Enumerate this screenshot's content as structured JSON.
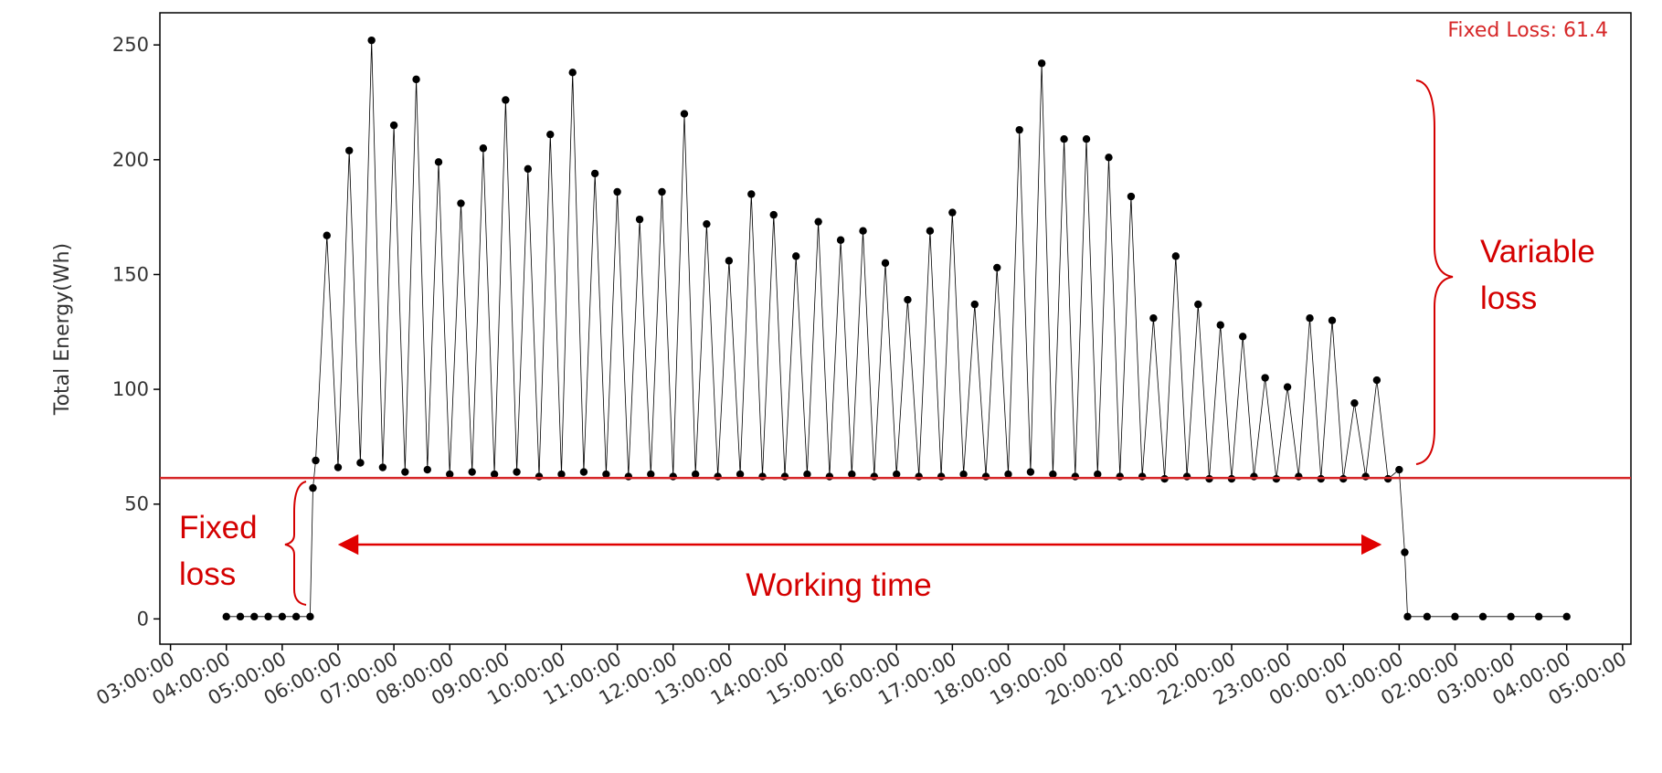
{
  "chart_data": {
    "type": "line",
    "ylabel": "Total Energy(Wh)",
    "color": "#000000",
    "x": [
      4.0,
      4.25,
      4.5,
      4.75,
      5.0,
      5.25,
      5.5,
      5.55,
      5.6,
      5.8,
      6.0,
      6.2,
      6.4,
      6.6,
      6.8,
      7.0,
      7.2,
      7.4,
      7.6,
      7.8,
      8.0,
      8.2,
      8.4,
      8.6,
      8.8,
      9.0,
      9.2,
      9.4,
      9.6,
      9.8,
      10.0,
      10.2,
      10.4,
      10.6,
      10.8,
      11.0,
      11.2,
      11.4,
      11.6,
      11.8,
      12.0,
      12.2,
      12.4,
      12.6,
      12.8,
      13.0,
      13.2,
      13.4,
      13.6,
      13.8,
      14.0,
      14.2,
      14.4,
      14.6,
      14.8,
      15.0,
      15.2,
      15.4,
      15.6,
      15.8,
      16.0,
      16.2,
      16.4,
      16.6,
      16.8,
      17.0,
      17.2,
      17.4,
      17.6,
      17.8,
      18.0,
      18.2,
      18.4,
      18.6,
      18.8,
      19.0,
      19.2,
      19.4,
      19.6,
      19.8,
      20.0,
      20.2,
      20.4,
      20.6,
      20.8,
      21.0,
      21.2,
      21.4,
      21.6,
      21.8,
      22.0,
      22.2,
      22.4,
      22.6,
      22.8,
      23.0,
      23.2,
      23.4,
      23.6,
      23.8,
      24.0,
      24.2,
      24.4,
      24.6,
      24.8,
      25.0,
      25.1,
      25.15,
      25.5,
      26.0,
      26.5,
      27.0,
      27.5,
      28.0
    ],
    "values": [
      1,
      1,
      1,
      1,
      1,
      1,
      1,
      57,
      69,
      167,
      66,
      204,
      68,
      252,
      66,
      215,
      64,
      235,
      65,
      199,
      63,
      181,
      64,
      205,
      63,
      226,
      64,
      196,
      62,
      211,
      63,
      238,
      64,
      194,
      63,
      186,
      62,
      174,
      63,
      186,
      62,
      220,
      63,
      172,
      62,
      156,
      63,
      185,
      62,
      176,
      62,
      158,
      63,
      173,
      62,
      165,
      63,
      169,
      62,
      155,
      63,
      139,
      62,
      169,
      62,
      177,
      63,
      137,
      62,
      153,
      63,
      213,
      64,
      242,
      63,
      209,
      62,
      209,
      63,
      201,
      62,
      184,
      62,
      131,
      61,
      158,
      62,
      137,
      61,
      128,
      61,
      123,
      62,
      105,
      61,
      101,
      62,
      131,
      61,
      130,
      61,
      94,
      62,
      104,
      61,
      65,
      29,
      1,
      1,
      1,
      1,
      1,
      1,
      1
    ],
    "xlim": [
      2.81,
      29.15
    ],
    "ylim": [
      -11,
      264
    ],
    "yticks": [
      0,
      50,
      100,
      150,
      200,
      250
    ],
    "xticks": [
      {
        "value": 3,
        "label": "03:00:00"
      },
      {
        "value": 4,
        "label": "04:00:00"
      },
      {
        "value": 5,
        "label": "05:00:00"
      },
      {
        "value": 6,
        "label": "06:00:00"
      },
      {
        "value": 7,
        "label": "07:00:00"
      },
      {
        "value": 8,
        "label": "08:00:00"
      },
      {
        "value": 9,
        "label": "09:00:00"
      },
      {
        "value": 10,
        "label": "10:00:00"
      },
      {
        "value": 11,
        "label": "11:00:00"
      },
      {
        "value": 12,
        "label": "12:00:00"
      },
      {
        "value": 13,
        "label": "13:00:00"
      },
      {
        "value": 14,
        "label": "14:00:00"
      },
      {
        "value": 15,
        "label": "15:00:00"
      },
      {
        "value": 16,
        "label": "16:00:00"
      },
      {
        "value": 17,
        "label": "17:00:00"
      },
      {
        "value": 18,
        "label": "18:00:00"
      },
      {
        "value": 19,
        "label": "19:00:00"
      },
      {
        "value": 20,
        "label": "20:00:00"
      },
      {
        "value": 21,
        "label": "21:00:00"
      },
      {
        "value": 22,
        "label": "22:00:00"
      },
      {
        "value": 23,
        "label": "23:00:00"
      },
      {
        "value": 24,
        "label": "00:00:00"
      },
      {
        "value": 25,
        "label": "01:00:00"
      },
      {
        "value": 26,
        "label": "02:00:00"
      },
      {
        "value": 27,
        "label": "03:00:00"
      },
      {
        "value": 28,
        "label": "04:00:00"
      },
      {
        "value": 29,
        "label": "05:00:00"
      }
    ],
    "hline": {
      "value": 61.4,
      "label": "Fixed Loss: 61.4",
      "color": "#d62728"
    },
    "annotations": [
      {
        "lines": [
          "Variable",
          "loss"
        ]
      },
      {
        "lines": [
          "Fixed",
          "loss"
        ]
      },
      {
        "lines": [
          "Working time"
        ]
      }
    ]
  }
}
